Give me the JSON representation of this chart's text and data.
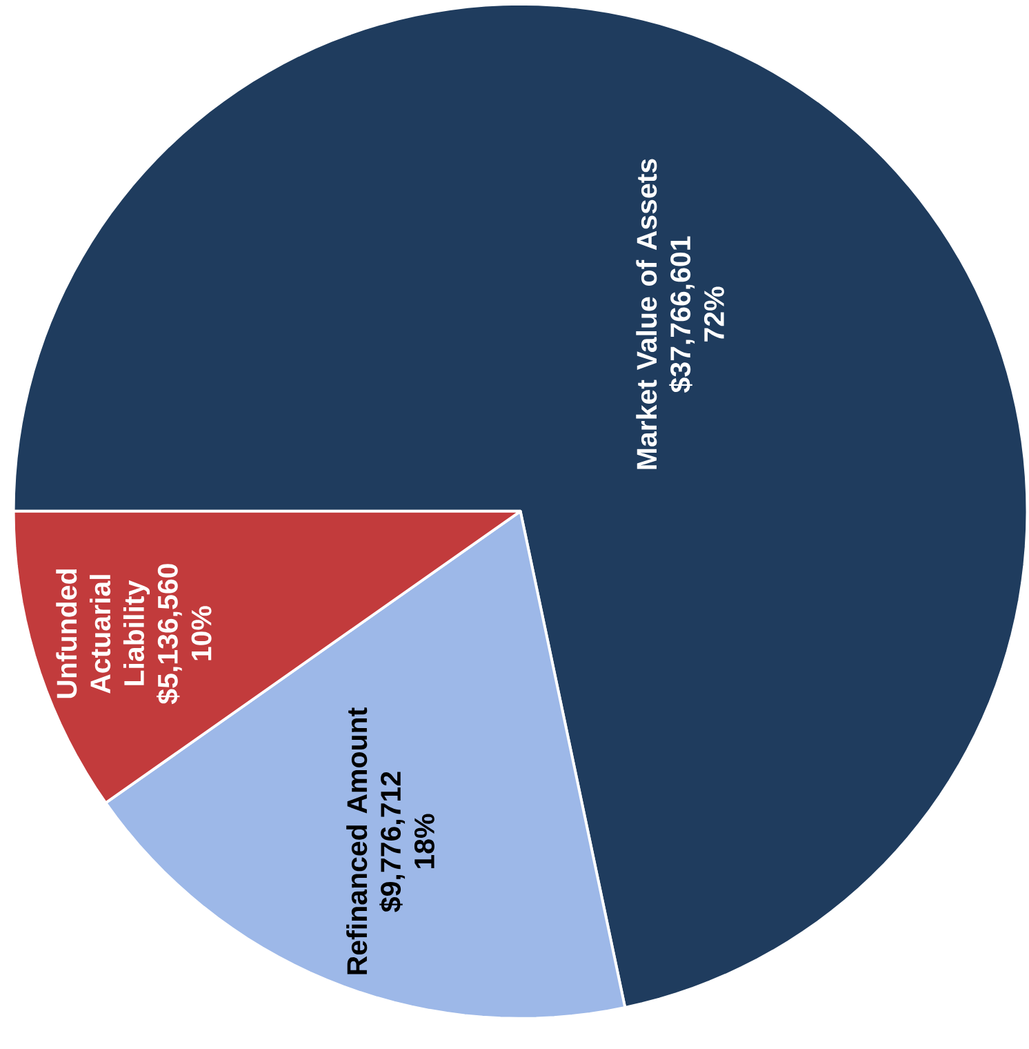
{
  "chart_data": {
    "type": "pie",
    "categories": [
      "Market Value of Assets",
      "Refinanced Amount",
      "Unfunded Actuarial Liability"
    ],
    "values": [
      37766601,
      9776712,
      5136560
    ],
    "value_labels": [
      "$37,766,601",
      "$9,776,712",
      "$5,136,560"
    ],
    "annotations": [
      "72%",
      "18%",
      "10%"
    ],
    "colors": [
      "#1f3c5e",
      "#9db8e8",
      "#c23b3c"
    ]
  }
}
